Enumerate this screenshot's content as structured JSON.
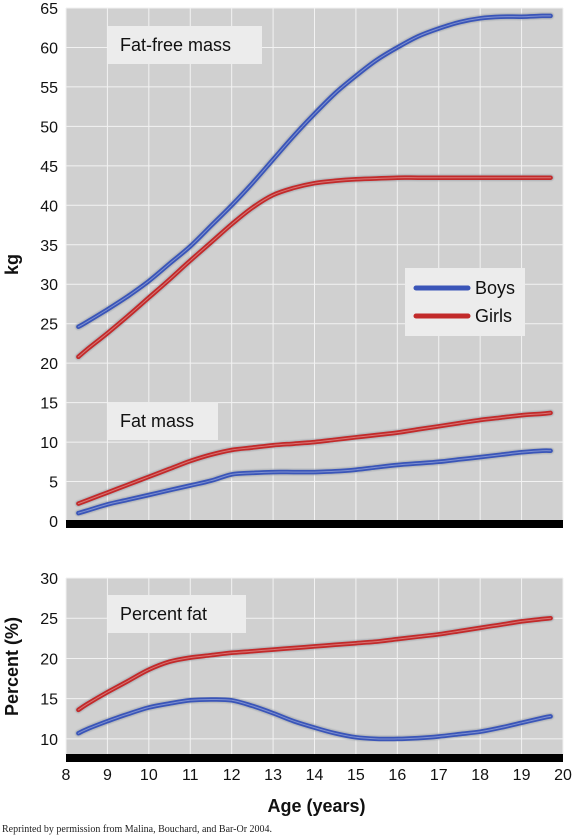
{
  "chart_data": {
    "type": "line",
    "x": [
      8.3,
      8.5,
      9,
      9.5,
      10,
      10.5,
      11,
      11.5,
      12,
      12.5,
      13,
      13.5,
      14,
      14.5,
      15,
      15.5,
      16,
      16.5,
      17,
      17.5,
      18,
      18.5,
      19,
      19.5,
      19.7
    ],
    "xlabel": "Age (years)",
    "xlim": [
      8,
      20
    ],
    "xticks": [
      "8",
      "9",
      "10",
      "11",
      "12",
      "13",
      "14",
      "15",
      "16",
      "17",
      "18",
      "19",
      "20"
    ],
    "colors": {
      "boys": "#3a55b8",
      "girls": "#c22a2a",
      "panel": "#d0d0d0",
      "grid": "#f2f2f2",
      "baseline": "#000000",
      "label_box": "#ececec"
    },
    "legend": {
      "placement": "right-middle",
      "items": [
        "Boys",
        "Girls"
      ]
    },
    "panels": [
      {
        "ylabel": "kg",
        "ylim": [
          0,
          65
        ],
        "yticks": [
          "0",
          "5",
          "10",
          "15",
          "20",
          "25",
          "30",
          "35",
          "40",
          "45",
          "50",
          "55",
          "60",
          "65"
        ],
        "labels": [
          "Fat-free mass",
          "Fat mass"
        ],
        "series": [
          {
            "name": "Boys",
            "group": "Fat-free mass",
            "values": [
              24.6,
              25.2,
              26.8,
              28.5,
              30.4,
              32.6,
              34.8,
              37.4,
              40.0,
              42.8,
              45.8,
              48.8,
              51.6,
              54.2,
              56.4,
              58.4,
              60.0,
              61.4,
              62.4,
              63.2,
              63.7,
              63.9,
              63.9,
              64.0,
              64.0
            ]
          },
          {
            "name": "Girls",
            "group": "Fat-free mass",
            "values": [
              20.8,
              21.7,
              23.8,
              26.0,
              28.3,
              30.6,
              33.0,
              35.3,
              37.6,
              39.7,
              41.3,
              42.2,
              42.8,
              43.1,
              43.3,
              43.4,
              43.5,
              43.5,
              43.5,
              43.5,
              43.5,
              43.5,
              43.5,
              43.5,
              43.5
            ]
          },
          {
            "name": "Boys",
            "group": "Fat mass",
            "values": [
              1.0,
              1.3,
              2.1,
              2.7,
              3.3,
              3.9,
              4.5,
              5.1,
              5.9,
              6.1,
              6.2,
              6.2,
              6.2,
              6.3,
              6.5,
              6.8,
              7.1,
              7.3,
              7.5,
              7.8,
              8.1,
              8.4,
              8.7,
              8.9,
              8.9
            ]
          },
          {
            "name": "Girls",
            "group": "Fat mass",
            "values": [
              2.2,
              2.6,
              3.6,
              4.6,
              5.6,
              6.6,
              7.6,
              8.4,
              9.0,
              9.3,
              9.6,
              9.8,
              10.0,
              10.3,
              10.6,
              10.9,
              11.2,
              11.6,
              12.0,
              12.4,
              12.8,
              13.1,
              13.4,
              13.6,
              13.7
            ]
          }
        ]
      },
      {
        "ylabel": "Percent (%)",
        "ylim": [
          8,
          30
        ],
        "yticks": [
          "10",
          "15",
          "20",
          "25",
          "30"
        ],
        "labels": [
          "Percent fat"
        ],
        "series": [
          {
            "name": "Boys",
            "group": "Percent fat",
            "values": [
              10.7,
              11.2,
              12.2,
              13.1,
              13.9,
              14.4,
              14.8,
              14.9,
              14.8,
              14.1,
              13.2,
              12.2,
              11.4,
              10.7,
              10.2,
              10.0,
              10.0,
              10.1,
              10.3,
              10.6,
              10.9,
              11.4,
              12.0,
              12.6,
              12.8
            ]
          },
          {
            "name": "Girls",
            "group": "Percent fat",
            "values": [
              13.6,
              14.3,
              15.8,
              17.2,
              18.6,
              19.6,
              20.1,
              20.4,
              20.7,
              20.9,
              21.1,
              21.3,
              21.5,
              21.7,
              21.9,
              22.1,
              22.4,
              22.7,
              23.0,
              23.4,
              23.8,
              24.2,
              24.6,
              24.9,
              25.0
            ]
          }
        ]
      }
    ]
  },
  "credit": "Reprinted by permission from Malina, Bouchard, and Bar-Or 2004."
}
